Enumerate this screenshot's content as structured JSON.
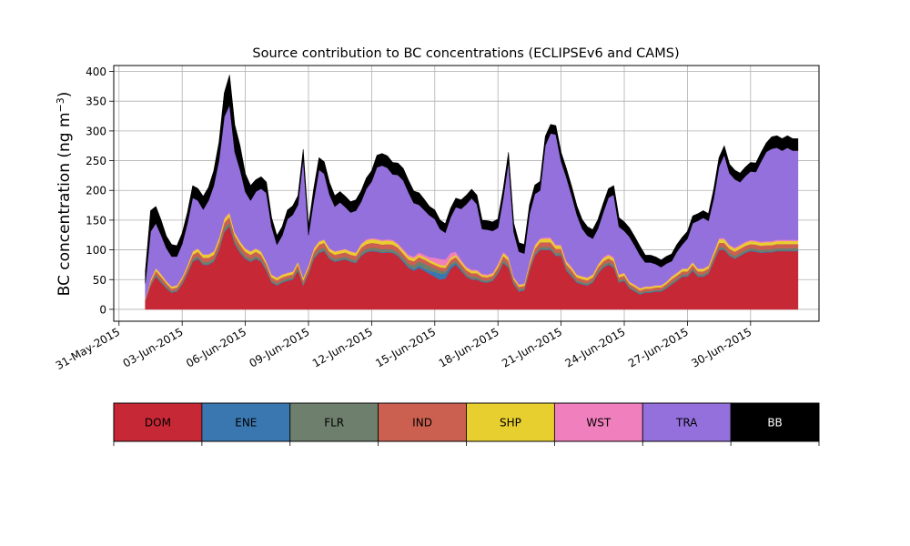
{
  "chart_data": {
    "type": "area",
    "stacked": true,
    "title": "Source contribution to BC concentrations (ECLIPSEv6 and CAMS)",
    "ylabel": "BC concentration (ng m",
    "ylabel_sup": "−3",
    "ylabel_close": ")",
    "xlabel": "",
    "xlim": [
      "2015-05-30T18:00",
      "2015-07-03T06:00"
    ],
    "ylim": [
      -20,
      410
    ],
    "yticks": [
      0,
      50,
      100,
      150,
      200,
      250,
      300,
      350,
      400
    ],
    "xticks": [
      "31-May-2015",
      "03-Jun-2015",
      "06-Jun-2015",
      "09-Jun-2015",
      "12-Jun-2015",
      "15-Jun-2015",
      "18-Jun-2015",
      "21-Jun-2015",
      "24-Jun-2015",
      "27-Jun-2015",
      "30-Jun-2015"
    ],
    "grid": true,
    "legend": "below",
    "x": [
      "2015-06-01T06:00",
      "2015-06-01T12:00",
      "2015-06-01T18:00",
      "2015-06-02T00:00",
      "2015-06-02T06:00",
      "2015-06-02T12:00",
      "2015-06-02T18:00",
      "2015-06-03T00:00",
      "2015-06-03T06:00",
      "2015-06-03T12:00",
      "2015-06-03T18:00",
      "2015-06-04T00:00",
      "2015-06-04T06:00",
      "2015-06-04T12:00",
      "2015-06-04T18:00",
      "2015-06-05T00:00",
      "2015-06-05T06:00",
      "2015-06-05T12:00",
      "2015-06-05T18:00",
      "2015-06-06T00:00",
      "2015-06-06T06:00",
      "2015-06-06T12:00",
      "2015-06-06T18:00",
      "2015-06-07T00:00",
      "2015-06-07T06:00",
      "2015-06-07T12:00",
      "2015-06-07T18:00",
      "2015-06-08T00:00",
      "2015-06-08T06:00",
      "2015-06-08T12:00",
      "2015-06-08T18:00",
      "2015-06-09T00:00",
      "2015-06-09T06:00",
      "2015-06-09T12:00",
      "2015-06-09T18:00",
      "2015-06-10T00:00",
      "2015-06-10T06:00",
      "2015-06-10T12:00",
      "2015-06-10T18:00",
      "2015-06-11T00:00",
      "2015-06-11T06:00",
      "2015-06-11T12:00",
      "2015-06-11T18:00",
      "2015-06-12T00:00",
      "2015-06-12T06:00",
      "2015-06-12T12:00",
      "2015-06-12T18:00",
      "2015-06-13T00:00",
      "2015-06-13T06:00",
      "2015-06-13T12:00",
      "2015-06-13T18:00",
      "2015-06-14T00:00",
      "2015-06-14T06:00",
      "2015-06-14T12:00",
      "2015-06-14T18:00",
      "2015-06-15T00:00",
      "2015-06-15T06:00",
      "2015-06-15T12:00",
      "2015-06-15T18:00",
      "2015-06-16T00:00",
      "2015-06-16T06:00",
      "2015-06-16T12:00",
      "2015-06-16T18:00",
      "2015-06-17T00:00",
      "2015-06-17T06:00",
      "2015-06-17T12:00",
      "2015-06-17T18:00",
      "2015-06-18T00:00",
      "2015-06-18T06:00",
      "2015-06-18T12:00",
      "2015-06-18T18:00",
      "2015-06-19T00:00",
      "2015-06-19T06:00",
      "2015-06-19T12:00",
      "2015-06-19T18:00",
      "2015-06-20T00:00",
      "2015-06-20T06:00",
      "2015-06-20T12:00",
      "2015-06-20T18:00",
      "2015-06-21T00:00",
      "2015-06-21T06:00",
      "2015-06-21T12:00",
      "2015-06-21T18:00",
      "2015-06-22T00:00",
      "2015-06-22T06:00",
      "2015-06-22T12:00",
      "2015-06-22T18:00",
      "2015-06-23T00:00",
      "2015-06-23T06:00",
      "2015-06-23T12:00",
      "2015-06-23T18:00",
      "2015-06-24T00:00",
      "2015-06-24T06:00",
      "2015-06-24T12:00",
      "2015-06-24T18:00",
      "2015-06-25T00:00",
      "2015-06-25T06:00",
      "2015-06-25T12:00",
      "2015-06-25T18:00",
      "2015-06-26T00:00",
      "2015-06-26T06:00",
      "2015-06-26T12:00",
      "2015-06-26T18:00",
      "2015-06-27T00:00",
      "2015-06-27T06:00",
      "2015-06-27T12:00",
      "2015-06-27T18:00",
      "2015-06-28T00:00",
      "2015-06-28T06:00",
      "2015-06-28T12:00",
      "2015-06-28T18:00",
      "2015-06-29T00:00",
      "2015-06-29T06:00",
      "2015-06-29T12:00",
      "2015-06-29T18:00",
      "2015-06-30T00:00",
      "2015-06-30T06:00",
      "2015-06-30T12:00",
      "2015-06-30T18:00",
      "2015-07-01T00:00",
      "2015-07-01T06:00",
      "2015-07-01T12:00",
      "2015-07-01T18:00",
      "2015-07-02T00:00",
      "2015-07-02T06:00"
    ],
    "series": [
      {
        "name": "DOM",
        "color": "#c62836",
        "values": [
          15,
          40,
          55,
          45,
          35,
          28,
          30,
          42,
          60,
          80,
          85,
          75,
          75,
          80,
          100,
          130,
          140,
          110,
          95,
          85,
          80,
          85,
          80,
          65,
          45,
          40,
          45,
          48,
          50,
          65,
          40,
          60,
          85,
          95,
          98,
          85,
          80,
          82,
          84,
          80,
          78,
          90,
          96,
          98,
          97,
          95,
          96,
          95,
          90,
          80,
          70,
          65,
          70,
          65,
          60,
          55,
          50,
          52,
          68,
          75,
          65,
          55,
          50,
          50,
          46,
          45,
          48,
          60,
          78,
          70,
          42,
          30,
          32,
          65,
          90,
          100,
          100,
          100,
          90,
          90,
          65,
          55,
          45,
          42,
          40,
          45,
          60,
          70,
          75,
          70,
          45,
          48,
          35,
          30,
          25,
          28,
          28,
          30,
          30,
          35,
          42,
          48,
          55,
          55,
          65,
          55,
          55,
          60,
          80,
          100,
          100,
          90,
          85,
          90,
          95,
          98,
          97,
          95,
          96,
          96,
          98,
          98,
          98,
          98,
          98
        ]
      },
      {
        "name": "ENE",
        "color": "#3a77b1",
        "values": [
          0,
          0,
          1,
          1,
          1,
          1,
          1,
          1,
          1,
          1,
          1,
          1,
          1,
          1,
          1,
          1,
          1,
          1,
          1,
          1,
          1,
          1,
          1,
          1,
          1,
          1,
          1,
          1,
          1,
          1,
          1,
          1,
          1,
          1,
          1,
          1,
          1,
          1,
          1,
          1,
          1,
          1,
          1,
          1,
          1,
          1,
          1,
          1,
          1,
          2,
          2,
          3,
          4,
          4,
          5,
          8,
          10,
          8,
          5,
          3,
          2,
          1,
          1,
          1,
          1,
          1,
          1,
          1,
          1,
          1,
          1,
          1,
          1,
          1,
          1,
          1,
          1,
          1,
          1,
          1,
          1,
          1,
          1,
          1,
          1,
          1,
          1,
          1,
          1,
          1,
          1,
          1,
          1,
          1,
          1,
          1,
          1,
          1,
          1,
          1,
          1,
          1,
          1,
          1,
          1,
          1,
          1,
          1,
          1,
          1,
          1,
          1,
          1,
          1,
          1,
          1,
          1,
          1,
          1,
          1,
          1,
          1,
          1,
          1,
          1
        ]
      },
      {
        "name": "FLR",
        "color": "#6e7f6e",
        "values": [
          1,
          2,
          3,
          3,
          3,
          2,
          2,
          3,
          3,
          4,
          4,
          4,
          4,
          4,
          5,
          6,
          6,
          5,
          5,
          4,
          4,
          4,
          4,
          4,
          3,
          3,
          3,
          3,
          3,
          4,
          3,
          3,
          4,
          5,
          5,
          4,
          4,
          4,
          4,
          4,
          4,
          5,
          5,
          5,
          5,
          5,
          5,
          5,
          5,
          5,
          5,
          6,
          7,
          8,
          8,
          6,
          5,
          4,
          4,
          4,
          4,
          4,
          4,
          4,
          3,
          3,
          3,
          4,
          4,
          4,
          3,
          3,
          3,
          3,
          4,
          4,
          4,
          4,
          4,
          4,
          4,
          4,
          3,
          3,
          3,
          3,
          4,
          4,
          4,
          4,
          3,
          3,
          3,
          3,
          2,
          2,
          2,
          2,
          2,
          3,
          3,
          3,
          3,
          3,
          3,
          3,
          3,
          3,
          4,
          4,
          4,
          4,
          4,
          4,
          4,
          4,
          4,
          4,
          4,
          4,
          4,
          4,
          4,
          4,
          4
        ]
      },
      {
        "name": "IND",
        "color": "#cc6050",
        "values": [
          2,
          5,
          6,
          6,
          5,
          4,
          4,
          5,
          6,
          7,
          7,
          7,
          7,
          7,
          8,
          9,
          9,
          8,
          8,
          7,
          7,
          7,
          7,
          6,
          5,
          5,
          5,
          5,
          5,
          6,
          5,
          6,
          7,
          8,
          8,
          7,
          7,
          7,
          7,
          7,
          7,
          8,
          8,
          8,
          8,
          8,
          8,
          8,
          8,
          7,
          7,
          7,
          7,
          7,
          6,
          6,
          6,
          6,
          6,
          6,
          6,
          6,
          6,
          6,
          5,
          5,
          5,
          6,
          7,
          7,
          5,
          4,
          4,
          6,
          7,
          8,
          8,
          8,
          7,
          7,
          6,
          6,
          5,
          5,
          5,
          5,
          6,
          6,
          6,
          6,
          5,
          5,
          4,
          4,
          4,
          4,
          4,
          4,
          4,
          4,
          5,
          5,
          5,
          5,
          6,
          5,
          5,
          5,
          6,
          7,
          7,
          7,
          7,
          7,
          7,
          7,
          7,
          7,
          7,
          7,
          7,
          7,
          7,
          7,
          7
        ]
      },
      {
        "name": "SHP",
        "color": "#e8cf30",
        "values": [
          1,
          3,
          4,
          4,
          3,
          3,
          3,
          3,
          4,
          5,
          5,
          5,
          5,
          5,
          6,
          6,
          6,
          5,
          5,
          5,
          5,
          5,
          5,
          4,
          4,
          4,
          4,
          4,
          4,
          4,
          4,
          4,
          5,
          5,
          5,
          5,
          5,
          5,
          5,
          5,
          5,
          5,
          6,
          6,
          6,
          6,
          6,
          6,
          5,
          5,
          5,
          5,
          4,
          4,
          4,
          4,
          4,
          4,
          4,
          4,
          4,
          4,
          4,
          4,
          3,
          3,
          3,
          4,
          5,
          5,
          3,
          3,
          3,
          4,
          5,
          5,
          6,
          6,
          5,
          5,
          4,
          4,
          4,
          4,
          4,
          4,
          4,
          5,
          5,
          5,
          4,
          4,
          3,
          3,
          3,
          3,
          3,
          3,
          3,
          3,
          4,
          4,
          4,
          4,
          4,
          4,
          4,
          4,
          5,
          6,
          6,
          5,
          5,
          5,
          5,
          5,
          5,
          5,
          5,
          5,
          5,
          5,
          5,
          5,
          5
        ]
      },
      {
        "name": "WST",
        "color": "#f07fbd",
        "values": [
          0,
          1,
          1,
          1,
          1,
          1,
          1,
          1,
          1,
          1,
          1,
          1,
          1,
          1,
          1,
          2,
          2,
          1,
          1,
          1,
          1,
          1,
          1,
          1,
          1,
          1,
          1,
          1,
          1,
          1,
          1,
          1,
          1,
          1,
          1,
          1,
          1,
          1,
          1,
          1,
          1,
          2,
          2,
          2,
          2,
          2,
          2,
          2,
          2,
          3,
          3,
          3,
          4,
          4,
          5,
          8,
          10,
          10,
          8,
          5,
          3,
          2,
          2,
          2,
          2,
          2,
          2,
          2,
          2,
          2,
          1,
          1,
          1,
          2,
          2,
          2,
          2,
          2,
          2,
          2,
          2,
          2,
          1,
          1,
          1,
          1,
          1,
          2,
          2,
          2,
          1,
          1,
          1,
          1,
          1,
          1,
          1,
          1,
          1,
          1,
          1,
          1,
          1,
          1,
          1,
          1,
          1,
          1,
          1,
          2,
          2,
          2,
          2,
          2,
          2,
          2,
          2,
          2,
          2,
          2,
          2,
          2,
          2,
          2,
          2
        ]
      },
      {
        "name": "TRA",
        "color": "#9370db",
        "values": [
          25,
          80,
          75,
          65,
          55,
          50,
          48,
          55,
          70,
          90,
          80,
          75,
          90,
          110,
          130,
          170,
          180,
          135,
          120,
          95,
          85,
          95,
          105,
          115,
          80,
          55,
          65,
          90,
          95,
          95,
          200,
          50,
          80,
          120,
          110,
          90,
          75,
          80,
          70,
          65,
          70,
          70,
          85,
          95,
          120,
          125,
          120,
          110,
          115,
          115,
          105,
          90,
          80,
          75,
          70,
          65,
          50,
          45,
          60,
          75,
          85,
          105,
          120,
          110,
          75,
          75,
          70,
          60,
          90,
          160,
          75,
          55,
          50,
          80,
          85,
          80,
          155,
          175,
          185,
          140,
          140,
          120,
          100,
          80,
          70,
          60,
          60,
          75,
          95,
          105,
          80,
          70,
          75,
          65,
          55,
          40,
          40,
          35,
          30,
          30,
          25,
          35,
          40,
          50,
          65,
          80,
          85,
          75,
          90,
          120,
          140,
          120,
          115,
          105,
          110,
          115,
          115,
          135,
          150,
          155,
          155,
          150,
          155,
          150,
          150
        ]
      },
      {
        "name": "BB",
        "color": "#000000",
        "values": [
          20,
          35,
          28,
          25,
          20,
          20,
          18,
          18,
          18,
          20,
          20,
          22,
          22,
          25,
          30,
          40,
          50,
          45,
          40,
          30,
          25,
          20,
          20,
          18,
          15,
          15,
          15,
          15,
          15,
          15,
          15,
          15,
          20,
          20,
          20,
          20,
          18,
          18,
          18,
          18,
          18,
          18,
          18,
          18,
          20,
          20,
          20,
          20,
          20,
          20,
          20,
          20,
          20,
          18,
          15,
          15,
          15,
          15,
          15,
          15,
          15,
          15,
          15,
          15,
          15,
          15,
          15,
          15,
          15,
          15,
          15,
          15,
          15,
          15,
          15,
          15,
          15,
          15,
          15,
          15,
          15,
          15,
          15,
          15,
          15,
          15,
          15,
          15,
          15,
          15,
          15,
          15,
          15,
          15,
          15,
          12,
          12,
          12,
          12,
          12,
          12,
          12,
          12,
          12,
          12,
          12,
          12,
          12,
          15,
          15,
          15,
          15,
          15,
          15,
          15,
          15,
          15,
          15,
          15,
          20,
          20,
          20,
          20,
          20,
          20
        ]
      }
    ],
    "legend_items": [
      {
        "label": "DOM",
        "color": "#c62836",
        "text_color": "#000000"
      },
      {
        "label": "ENE",
        "color": "#3a77b1",
        "text_color": "#000000"
      },
      {
        "label": "FLR",
        "color": "#6e7f6e",
        "text_color": "#000000"
      },
      {
        "label": "IND",
        "color": "#cc6050",
        "text_color": "#000000"
      },
      {
        "label": "SHP",
        "color": "#e8cf30",
        "text_color": "#000000"
      },
      {
        "label": "WST",
        "color": "#f07fbd",
        "text_color": "#000000"
      },
      {
        "label": "TRA",
        "color": "#9370db",
        "text_color": "#000000"
      },
      {
        "label": "BB",
        "color": "#000000",
        "text_color": "#ffffff"
      }
    ]
  }
}
